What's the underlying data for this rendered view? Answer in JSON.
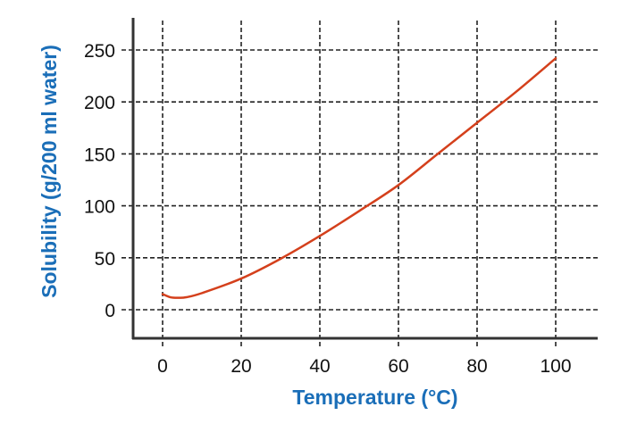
{
  "chart_data": {
    "type": "line",
    "title": "",
    "xlabel": "Temperature (°C)",
    "ylabel": "Solubility (g/200 ml water)",
    "xlim": [
      -8,
      111
    ],
    "ylim": [
      -27,
      283
    ],
    "xticks": [
      0,
      20,
      40,
      60,
      80,
      100
    ],
    "yticks": [
      0,
      50,
      100,
      150,
      200,
      250
    ],
    "grid": true,
    "grid_style": "dashed",
    "legend": null,
    "series": [
      {
        "name": "Solubility",
        "color": "#d4401c",
        "x": [
          0,
          2,
          4,
          6,
          10,
          20,
          30,
          40,
          50,
          60,
          70,
          80,
          90,
          100
        ],
        "y": [
          15,
          12,
          11.5,
          12,
          16,
          30,
          49,
          71,
          95,
          120,
          150,
          180,
          210,
          242
        ]
      }
    ]
  },
  "colors": {
    "axis_title": "#1a6eb8",
    "axis_line": "#333333",
    "grid": "#222222",
    "curve": "#d4401c"
  }
}
